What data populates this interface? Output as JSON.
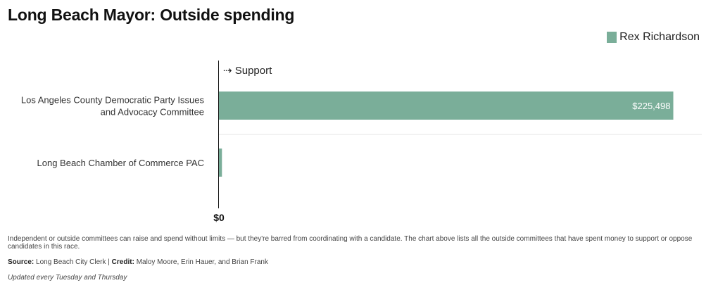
{
  "title": "Long Beach Mayor: Outside spending",
  "legend": {
    "label": "Rex Richardson",
    "color": "#7aae99"
  },
  "chart_data": {
    "type": "bar",
    "orientation": "horizontal",
    "direction_label": "⇢ Support",
    "categories": [
      [
        "Los Angeles County Democratic Party Issues",
        "and Advocacy Committee"
      ],
      [
        "Long Beach Chamber of Commerce PAC"
      ]
    ],
    "series": [
      {
        "name": "Rex Richardson",
        "values": [
          225498,
          1500
        ],
        "color": "#7aae99"
      }
    ],
    "value_labels": [
      "$225,498",
      ""
    ],
    "x_tick_labels": [
      {
        "value": 0,
        "label": "$0"
      }
    ],
    "xlim": [
      0,
      231000
    ]
  },
  "footer": {
    "note": "Independent or outside committees can raise and spend without limits — but they're barred from coordinating with a candidate. The chart above lists all the outside committees that have spent money to support or oppose candidates in this race.",
    "source_label": "Source:",
    "source_text": "Long Beach City Clerk |",
    "credit_label": "Credit:",
    "credit_text": "Maloy Moore, Erin Hauer, and Brian Frank",
    "updated": "Updated every Tuesday and Thursday"
  }
}
